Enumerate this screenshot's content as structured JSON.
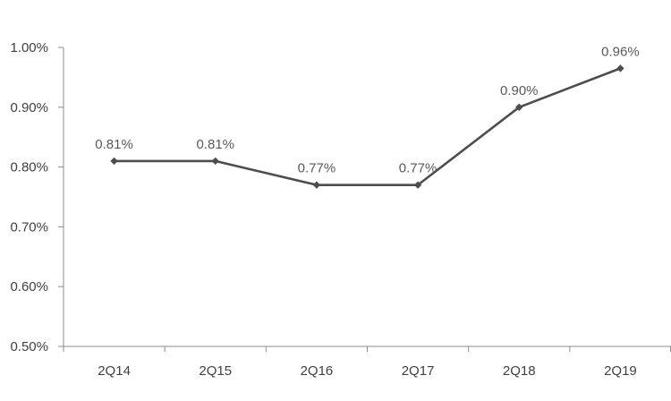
{
  "chart_data": {
    "type": "line",
    "categories": [
      "2Q14",
      "2Q15",
      "2Q16",
      "2Q17",
      "2Q18",
      "2Q19"
    ],
    "series": [
      {
        "values": [
          0.81,
          0.81,
          0.77,
          0.77,
          0.9,
          0.965
        ],
        "data_labels": [
          "0.81%",
          "0.81%",
          "0.77%",
          "0.77%",
          "0.90%",
          "0.96%"
        ],
        "color": "#4d4d4d",
        "marker": "diamond"
      }
    ],
    "y_ticks": [
      {
        "value": 0.5,
        "label": "0.50%"
      },
      {
        "value": 0.6,
        "label": "0.60%"
      },
      {
        "value": 0.7,
        "label": "0.70%"
      },
      {
        "value": 0.8,
        "label": "0.80%"
      },
      {
        "value": 0.9,
        "label": "0.90%"
      },
      {
        "value": 1.0,
        "label": "1.00%"
      }
    ],
    "ylim": [
      0.5,
      1.0
    ],
    "title": "",
    "xlabel": "",
    "ylabel": "",
    "grid": false,
    "legend": "none",
    "axis_color": "#8c8c8c"
  }
}
